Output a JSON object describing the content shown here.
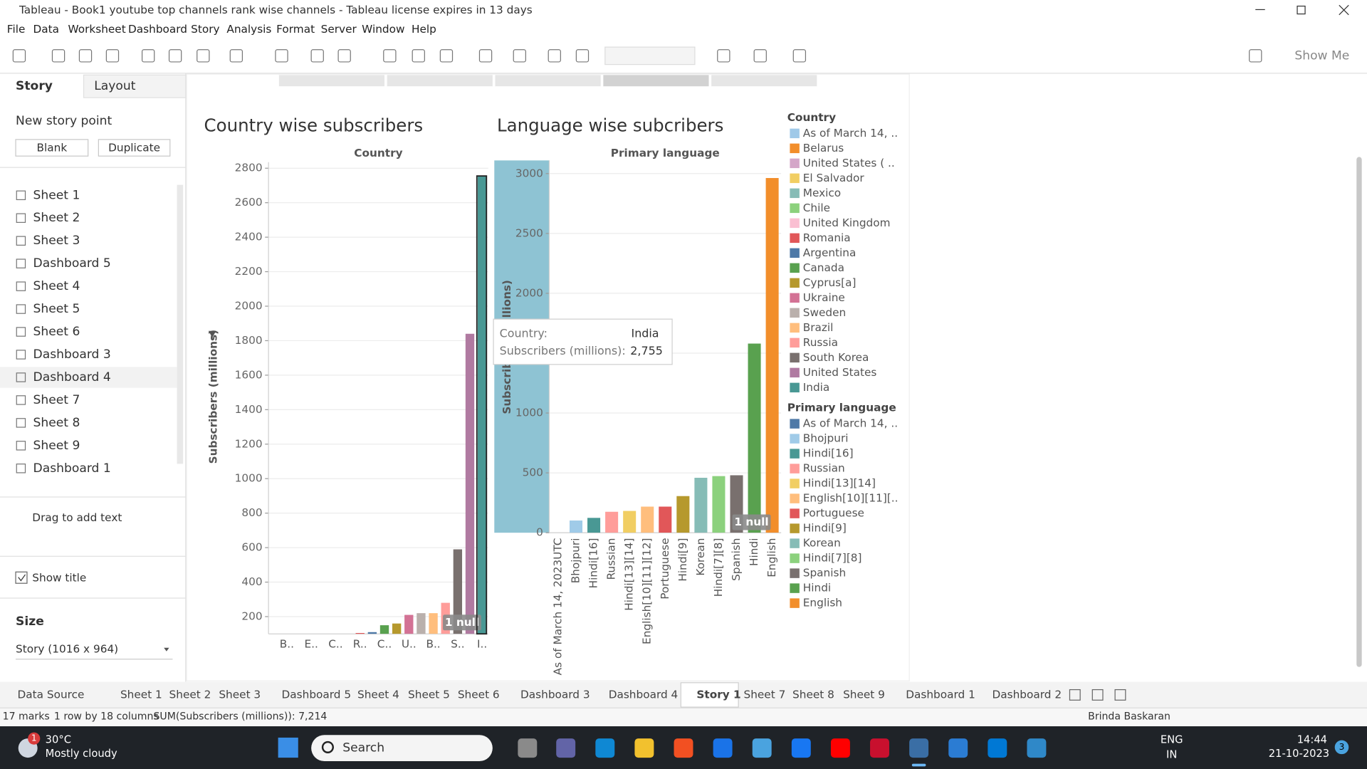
{
  "window": {
    "title": "Tableau - Book1 youtube top channels rank wise channels - Tableau license expires in 13 days"
  },
  "menu": [
    "File",
    "Data",
    "Worksheet",
    "Dashboard",
    "Story",
    "Analysis",
    "Format",
    "Server",
    "Window",
    "Help"
  ],
  "toolbar": {
    "show_me": "Show Me"
  },
  "side_panel": {
    "tabs": [
      "Story",
      "Layout"
    ],
    "new_story_point": "New story point",
    "buttons": [
      "Blank",
      "Duplicate"
    ],
    "sheets": [
      "Sheet 1",
      "Sheet 2",
      "Sheet 3",
      "Dashboard 5",
      "Sheet 4",
      "Sheet 5",
      "Sheet 6",
      "Dashboard 3",
      "Dashboard 4",
      "Sheet 7",
      "Sheet 8",
      "Sheet 9",
      "Dashboard 1"
    ],
    "drag_text": "Drag to add text",
    "show_title": "Show title",
    "size_heading": "Size",
    "size_value": "Story (1016 x 964)"
  },
  "chart_data": [
    {
      "type": "bar",
      "title": "Country wise subscribers",
      "header": "Country",
      "y_label": "Subscribers (millions)",
      "categories": [
        null,
        "B..",
        null,
        "E..",
        null,
        "C..",
        null,
        "R..",
        null,
        "C..",
        null,
        "U..",
        null,
        "B..",
        null,
        "S..",
        null,
        "I.."
      ],
      "values": [
        null,
        50,
        55,
        60,
        70,
        80,
        90,
        105,
        110,
        150,
        160,
        210,
        220,
        220,
        280,
        590,
        1840,
        2755
      ],
      "ylim": [
        100,
        2835
      ],
      "yticks": [
        200,
        400,
        600,
        800,
        1000,
        1200,
        1400,
        1600,
        1800,
        2000,
        2200,
        2400,
        2600,
        2800
      ],
      "grid": true,
      "null_indicator": "1 null",
      "legend": {
        "title": "Country",
        "items": [
          {
            "name": "As of March 14, ..",
            "color": "#9fc9e8"
          },
          {
            "name": "Belarus",
            "color": "#f28e2b"
          },
          {
            "name": "United States ( ..",
            "color": "#d4a6c8"
          },
          {
            "name": "El Salvador",
            "color": "#f1ce63"
          },
          {
            "name": "Mexico",
            "color": "#86bcb6"
          },
          {
            "name": "Chile",
            "color": "#8cd17d"
          },
          {
            "name": "United Kingdom",
            "color": "#fabfd2"
          },
          {
            "name": "Romania",
            "color": "#e15759"
          },
          {
            "name": "Argentina",
            "color": "#4e79a7"
          },
          {
            "name": "Canada",
            "color": "#59a14f"
          },
          {
            "name": "Cyprus[a]",
            "color": "#b6992d"
          },
          {
            "name": "Ukraine",
            "color": "#d37295"
          },
          {
            "name": "Sweden",
            "color": "#bab0ac"
          },
          {
            "name": "Brazil",
            "color": "#ffbe7d"
          },
          {
            "name": "Russia",
            "color": "#ff9d9a"
          },
          {
            "name": "South Korea",
            "color": "#79706e"
          },
          {
            "name": "United States",
            "color": "#b07aa1"
          },
          {
            "name": "India",
            "color": "#499894"
          }
        ]
      },
      "tooltip": {
        "fields": [
          {
            "label": "Country:",
            "value": "India"
          },
          {
            "label": "Subscribers (millions):",
            "value": "2,755"
          }
        ]
      }
    },
    {
      "type": "bar",
      "title": "Language wise subcribers",
      "header": "Primary language",
      "y_label": "Subscribers (millions)",
      "categories": [
        "As of March 14, 2023UTC",
        "Bhojpuri",
        "Hindi[16]",
        "Russian",
        "Hindi[13][14]",
        "English[10][11][12]",
        "Portuguese",
        "Hindi[9]",
        "Korean",
        "Hindi[7][8]",
        "Spanish",
        "Hindi",
        "English"
      ],
      "values": [
        null,
        102,
        124,
        175,
        182,
        218,
        218,
        306,
        459,
        473,
        480,
        1580,
        2963
      ],
      "ylim": [
        0,
        3110
      ],
      "yticks": [
        0,
        500,
        1000,
        1500,
        2000,
        2500,
        3000
      ],
      "grid": true,
      "null_indicator": "1 null",
      "legend": {
        "title": "Primary language",
        "items": [
          {
            "name": "As of March 14, ..",
            "color": "#4e79a7"
          },
          {
            "name": "Bhojpuri",
            "color": "#a0cbe8"
          },
          {
            "name": "Hindi[16]",
            "color": "#499894"
          },
          {
            "name": "Russian",
            "color": "#ff9d9a"
          },
          {
            "name": "Hindi[13][14]",
            "color": "#f1ce63"
          },
          {
            "name": "English[10][11][..",
            "color": "#ffbe7d"
          },
          {
            "name": "Portuguese",
            "color": "#e15759"
          },
          {
            "name": "Hindi[9]",
            "color": "#b6992d"
          },
          {
            "name": "Korean",
            "color": "#86bcb6"
          },
          {
            "name": "Hindi[7][8]",
            "color": "#8cd17d"
          },
          {
            "name": "Spanish",
            "color": "#79706e"
          },
          {
            "name": "Hindi",
            "color": "#59a14f"
          },
          {
            "name": "English",
            "color": "#f28e2b"
          }
        ]
      }
    }
  ],
  "sheet_tabs": [
    "Data Source",
    "Sheet 1",
    "Sheet 2",
    "Sheet 3",
    "Dashboard 5",
    "Sheet 4",
    "Sheet 5",
    "Sheet 6",
    "Dashboard 3",
    "Dashboard 4",
    "Story 1",
    "Sheet 7",
    "Sheet 8",
    "Sheet 9",
    "Dashboard 1",
    "Dashboard 2"
  ],
  "status_bar": {
    "items": [
      "17 marks",
      "1 row by 18 columns",
      "SUM(Subscribers (millions)): 7,214"
    ],
    "user": "Brinda Baskaran"
  },
  "taskbar": {
    "weather_badge": "1",
    "temperature": "30°C",
    "condition": "Mostly cloudy",
    "search": "Search",
    "language": [
      "ENG",
      "IN"
    ],
    "time": "14:44",
    "date": "21-10-2023",
    "notifications": "3"
  }
}
